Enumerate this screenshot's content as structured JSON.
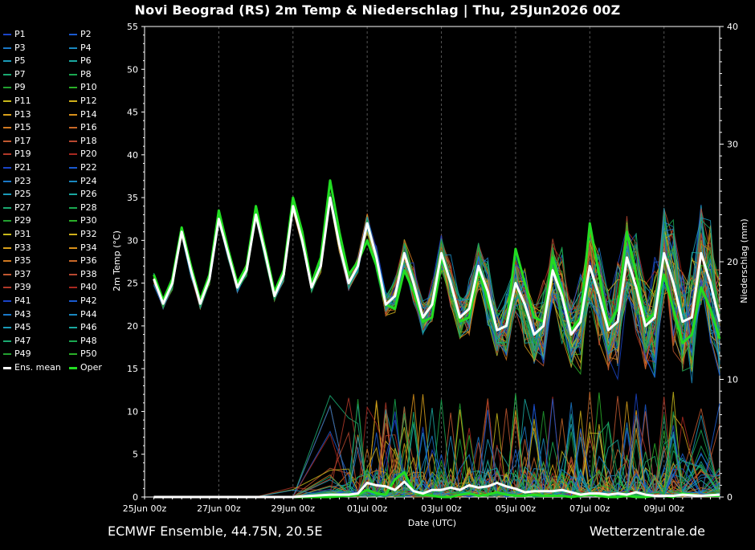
{
  "title": "Novi Beograd  (RS)  2m Temp & Niederschlag | Thu, 25Jun2026 00Z",
  "footer_left": "ECMWF Ensemble, 44.75N, 20.5E",
  "footer_right": "Wetterzentrale.de",
  "chart_data": {
    "type": "line",
    "title": "Novi Beograd  (RS)  2m Temp & Niederschlag | Thu, 25Jun2026 00Z",
    "xlabel": "Date (UTC)",
    "ylabel": "2m Temp (°C)",
    "y2label": "Niederschlag (mm)",
    "xticks": [
      "25Jun 00z",
      "27Jun 00z",
      "29Jun 00z",
      "01Jul 00z",
      "03Jul 00z",
      "05Jul 00z",
      "07Jul 00z",
      "09Jul 00z"
    ],
    "yticks": [
      0,
      5,
      10,
      15,
      20,
      25,
      30,
      35,
      40,
      45,
      50,
      55
    ],
    "y2ticks": [
      0,
      10,
      20,
      30,
      40
    ],
    "ylim": [
      0,
      55
    ],
    "y2lim": [
      0,
      40
    ],
    "xlim_days": [
      0,
      15.5
    ],
    "grid": true,
    "legend_position": "left",
    "legend": [
      "P1",
      "P2",
      "P3",
      "P4",
      "P5",
      "P6",
      "P7",
      "P8",
      "P9",
      "P10",
      "P11",
      "P12",
      "P13",
      "P14",
      "P15",
      "P16",
      "P17",
      "P18",
      "P19",
      "P20",
      "P21",
      "P22",
      "P23",
      "P24",
      "P25",
      "P26",
      "P27",
      "P28",
      "P29",
      "P30",
      "P31",
      "P32",
      "P33",
      "P34",
      "P35",
      "P36",
      "P37",
      "P38",
      "P39",
      "P40",
      "P41",
      "P42",
      "P43",
      "P44",
      "P45",
      "P46",
      "P47",
      "P48",
      "P49",
      "P50",
      "Ens. mean",
      "Oper"
    ],
    "legend_colors": [
      "#1a44c8",
      "#1a5ad0",
      "#1a78c8",
      "#1a88c0",
      "#1a9ab8",
      "#1aa8a0",
      "#1aa870",
      "#1aa850",
      "#22a030",
      "#2ab028",
      "#c8b81a",
      "#d0b01a",
      "#d8a01a",
      "#d8901a",
      "#d07820",
      "#c86828",
      "#c05830",
      "#b84830",
      "#b03828",
      "#a82820",
      "#1a44c8",
      "#1a5ad0",
      "#1a78c8",
      "#1a88c0",
      "#1a9ab8",
      "#1aa8a0",
      "#1aa870",
      "#1aa850",
      "#22a030",
      "#2ab028",
      "#c8b81a",
      "#d0b01a",
      "#d8a01a",
      "#d8901a",
      "#d07820",
      "#c86828",
      "#c05830",
      "#b84830",
      "#b03828",
      "#a82820",
      "#1a44c8",
      "#1a5ad0",
      "#1a78c8",
      "#1a88c0",
      "#1a9ab8",
      "#1aa8a0",
      "#1aa870",
      "#1aa850",
      "#22a030",
      "#2ab028",
      "#ffffff",
      "#22dd22"
    ],
    "ens_mean_temp": {
      "x": [
        0.25,
        0.5,
        0.75,
        1,
        1.25,
        1.5,
        1.75,
        2,
        2.25,
        2.5,
        2.75,
        3,
        3.25,
        3.5,
        3.75,
        4,
        4.25,
        4.5,
        4.75,
        5,
        5.25,
        5.5,
        5.75,
        6,
        6.25,
        6.5,
        6.75,
        7,
        7.25,
        7.5,
        7.75,
        8,
        8.25,
        8.5,
        8.75,
        9,
        9.25,
        9.5,
        9.75,
        10,
        10.25,
        10.5,
        10.75,
        11,
        11.25,
        11.5,
        11.75,
        12,
        12.25,
        12.5,
        12.75,
        13,
        13.25,
        13.5,
        13.75,
        14,
        14.25,
        14.5,
        14.75,
        15,
        15.25,
        15.5
      ],
      "y": [
        25.5,
        22.6,
        25,
        31,
        26.5,
        22.6,
        25.5,
        32.5,
        28.5,
        24.5,
        26.5,
        33,
        28.5,
        23.5,
        26,
        34,
        30,
        24.5,
        27,
        35,
        29.5,
        25,
        27,
        32,
        28,
        22.5,
        23.5,
        28.5,
        25,
        21,
        22.5,
        28.5,
        25,
        21,
        22,
        27,
        24,
        19.5,
        20,
        25,
        22.5,
        19,
        20,
        26.5,
        23.5,
        19,
        20.5,
        27,
        23.5,
        19.5,
        20.5,
        28,
        24.5,
        20,
        21,
        28.5,
        25,
        20.5,
        21,
        28.5,
        25,
        20.5
      ]
    },
    "oper_temp": {
      "x": [
        0.25,
        0.5,
        0.75,
        1,
        1.25,
        1.5,
        1.75,
        2,
        2.25,
        2.5,
        2.75,
        3,
        3.25,
        3.5,
        3.75,
        4,
        4.25,
        4.5,
        4.75,
        5,
        5.25,
        5.5,
        5.75,
        6,
        6.25,
        6.5,
        6.75,
        7,
        7.25,
        7.5,
        7.75,
        8,
        8.25,
        8.5,
        8.75,
        9,
        9.25,
        9.5,
        9.75,
        10,
        10.25,
        10.5,
        10.75,
        11,
        11.25,
        11.5,
        11.75,
        12,
        12.25,
        12.5,
        12.75,
        13,
        13.25,
        13.5,
        13.75,
        14,
        14.25,
        14.5,
        14.75,
        15,
        15.25,
        15.5
      ],
      "y": [
        26,
        23,
        25.5,
        31.5,
        27,
        23,
        26,
        33.5,
        29,
        25,
        27,
        34,
        29,
        24,
        26.5,
        35,
        31,
        25,
        28,
        37,
        31,
        26,
        27.5,
        30,
        27,
        22.5,
        22,
        26.5,
        24,
        20.5,
        21,
        28,
        25,
        20.5,
        21,
        26.5,
        23,
        19.5,
        20,
        29,
        25,
        21,
        20.5,
        28,
        24,
        19.5,
        21,
        32,
        26,
        20,
        22,
        31,
        26,
        20.5,
        21.5,
        26,
        22,
        18,
        19,
        24.5,
        22,
        18.5
      ]
    },
    "ens_mean_precip": {
      "x": [
        0.25,
        1,
        2,
        3,
        4,
        5,
        5.5,
        5.75,
        6,
        6.25,
        6.5,
        6.75,
        7,
        7.25,
        7.5,
        7.75,
        8,
        8.25,
        8.5,
        8.75,
        9,
        9.25,
        9.5,
        9.75,
        10,
        10.25,
        10.5,
        10.75,
        11,
        11.25,
        11.5,
        11.75,
        12,
        12.25,
        12.5,
        12.75,
        13,
        13.25,
        13.5,
        13.75,
        14,
        14.25,
        14.5,
        15,
        15.5
      ],
      "y": [
        0,
        0,
        0,
        0,
        0,
        0.2,
        0.2,
        0.3,
        1.2,
        1.0,
        0.9,
        0.6,
        1.3,
        0.5,
        0.3,
        0.6,
        0.6,
        0.8,
        0.6,
        1.0,
        0.8,
        0.9,
        1.2,
        0.9,
        0.7,
        0.4,
        0.5,
        0.5,
        0.5,
        0.6,
        0.4,
        0.2,
        0.3,
        0.3,
        0.2,
        0.3,
        0.2,
        0.4,
        0.2,
        0.1,
        0.1,
        0.1,
        0.2,
        0.1,
        0.2
      ]
    },
    "oper_precip": {
      "x": [
        0.25,
        1,
        2,
        3,
        4,
        5,
        5.5,
        5.75,
        6,
        6.25,
        6.5,
        6.75,
        7,
        7.25,
        7.5,
        7.75,
        8,
        8.25,
        8.5,
        8.75,
        9,
        9.25,
        9.5,
        9.75,
        10,
        10.25,
        10.5,
        10.75,
        11,
        11.25,
        11.5,
        11.75,
        12,
        12.25,
        12.5,
        12.75,
        13,
        13.25,
        13.5,
        13.75,
        14,
        14.25,
        14.5,
        15,
        15.5
      ],
      "y": [
        0,
        0,
        0,
        0,
        0,
        0,
        0.1,
        0.2,
        0.6,
        0.3,
        0.2,
        1.5,
        2.1,
        0.5,
        0.2,
        0.1,
        0,
        0,
        0.2,
        0.3,
        0.1,
        0.2,
        0.4,
        0.2,
        0.1,
        0.1,
        0.2,
        0.1,
        0.1,
        0.1,
        0,
        0.1,
        0.2,
        0.1,
        0,
        0,
        0.1,
        0,
        0,
        0.1,
        0.1,
        0,
        0.3,
        0.1,
        0.1
      ]
    }
  }
}
